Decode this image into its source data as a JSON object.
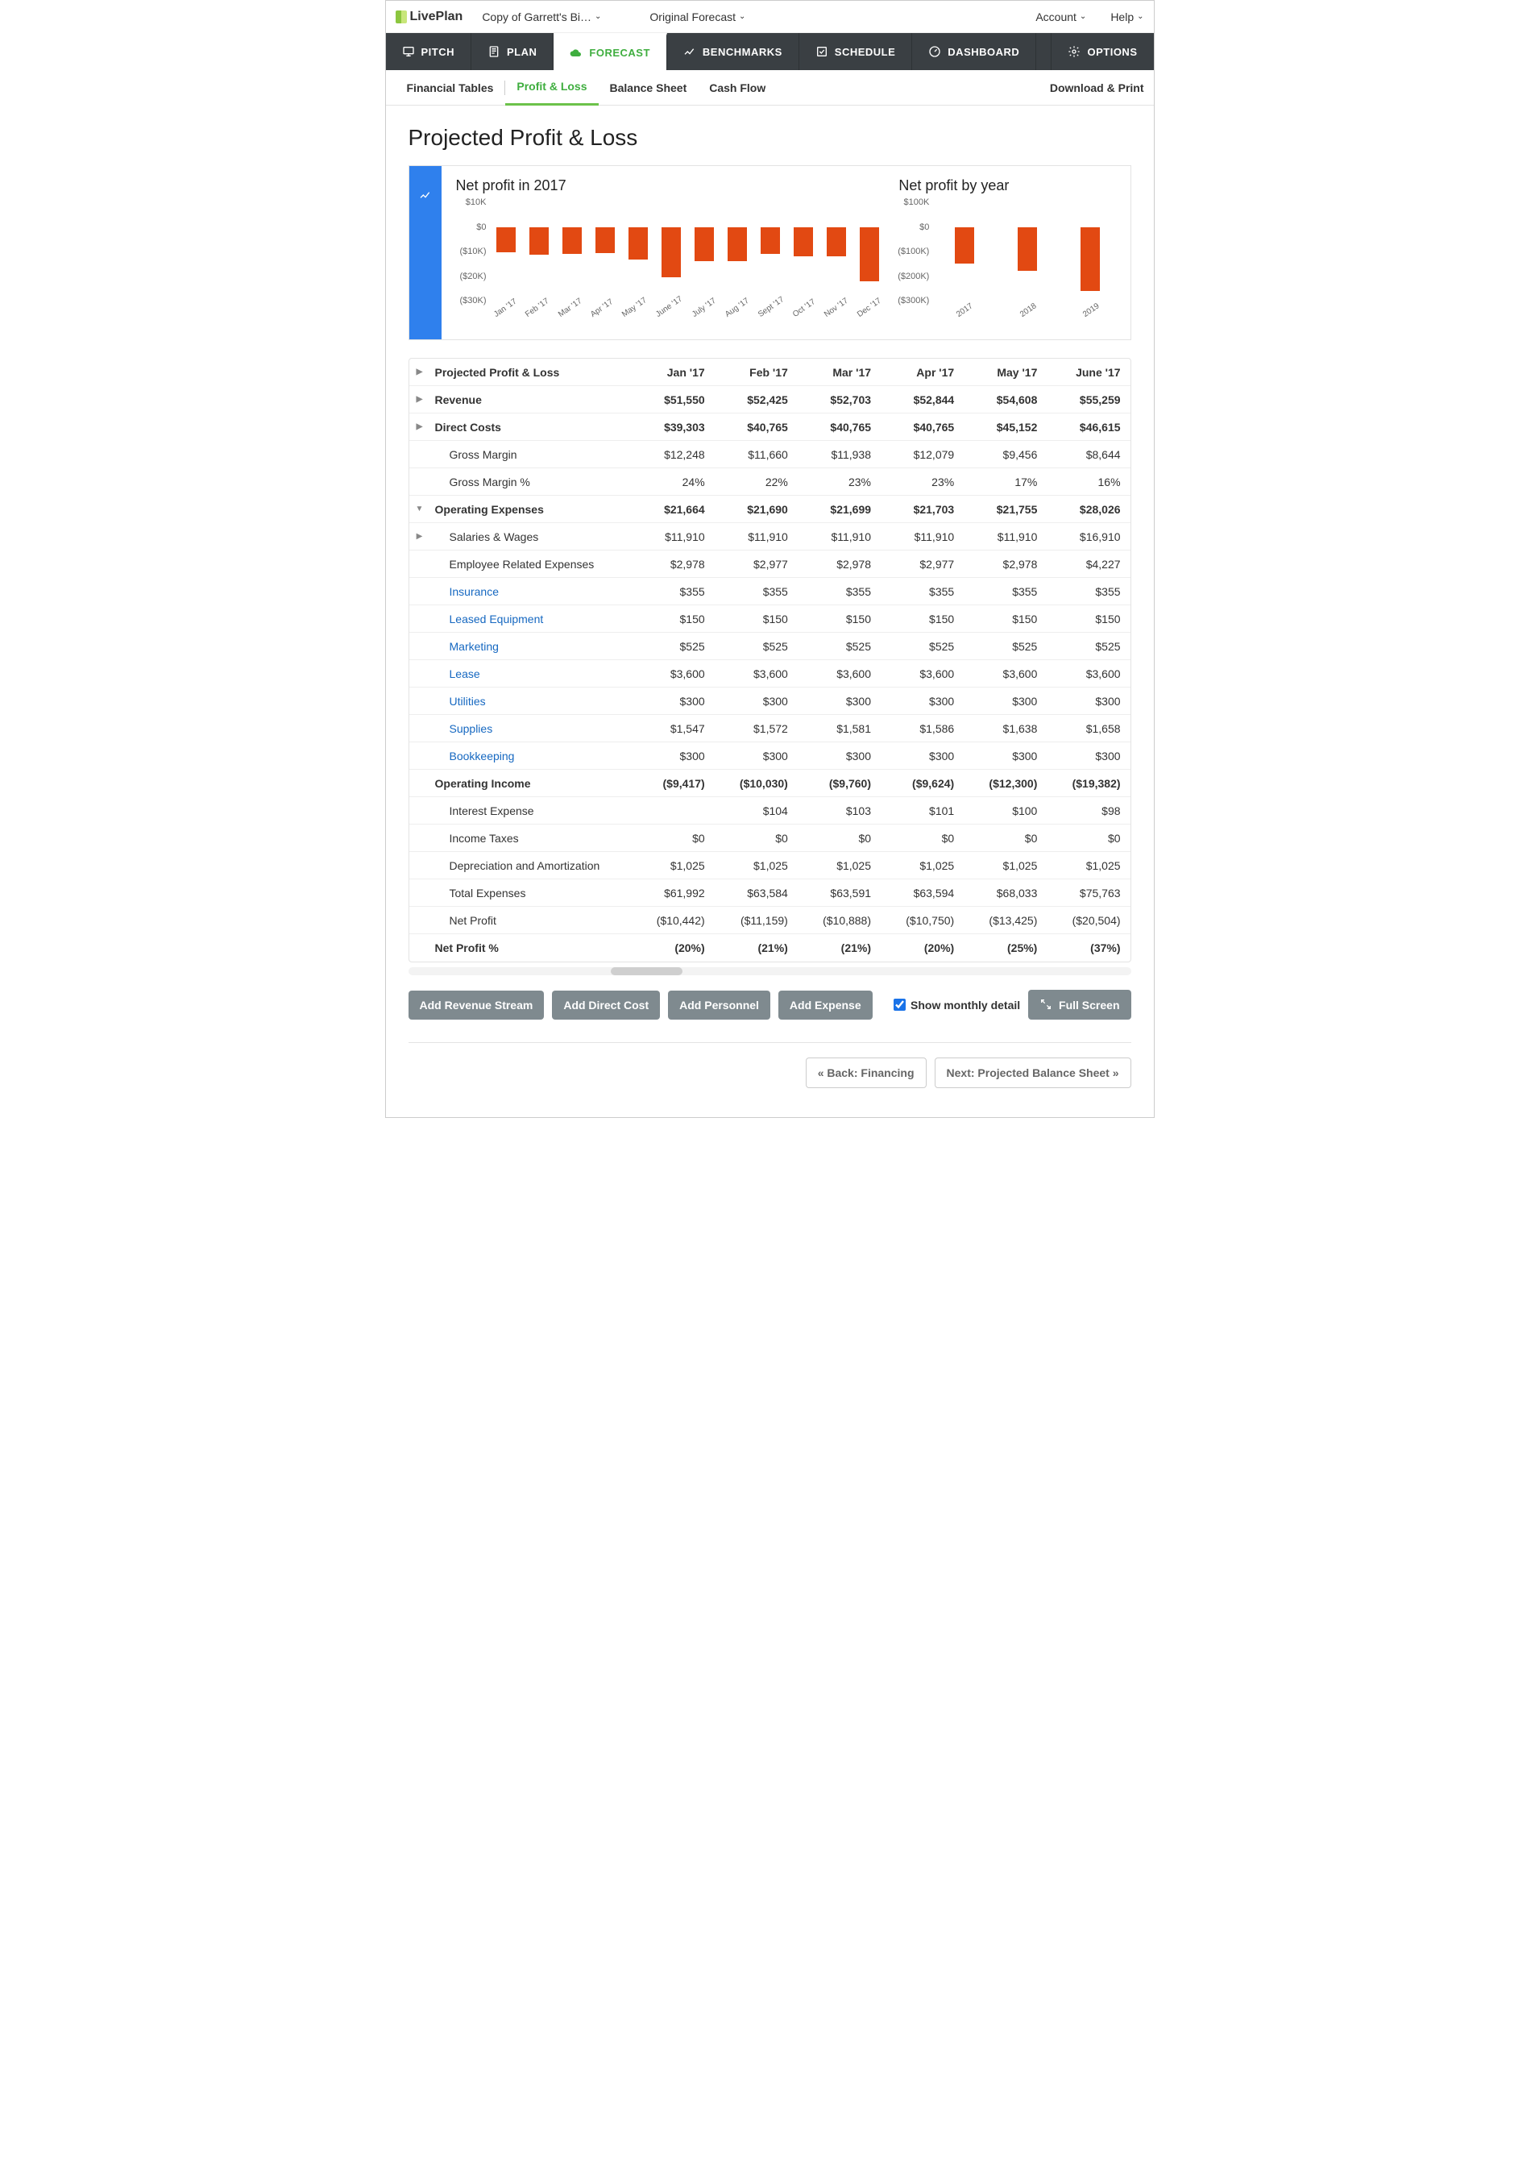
{
  "topbar": {
    "logo_text": "LivePlan",
    "plan_name": "Copy of Garrett's Bi…",
    "forecast_name": "Original Forecast",
    "account_label": "Account",
    "help_label": "Help"
  },
  "mainnav": {
    "items": [
      "PITCH",
      "PLAN",
      "FORECAST",
      "BENCHMARKS",
      "SCHEDULE",
      "DASHBOARD",
      "OPTIONS"
    ],
    "active_index": 2
  },
  "subnav": {
    "items": [
      "Financial Tables",
      "Profit & Loss",
      "Balance Sheet",
      "Cash Flow"
    ],
    "active_index": 1,
    "download_label": "Download & Print"
  },
  "page": {
    "title": "Projected Profit & Loss"
  },
  "charts": {
    "bar_color": "#e24912",
    "tab_color": "#2f80ed",
    "monthly": {
      "title": "Net profit in 2017",
      "ylim": [
        -30000,
        10000
      ],
      "yticks": [
        "$10K",
        "$0",
        "($10K)",
        "($20K)",
        "($30K)"
      ],
      "categories": [
        "Jan '17",
        "Feb '17",
        "Mar '17",
        "Apr '17",
        "May '17",
        "June '17",
        "July '17",
        "Aug '17",
        "Sept '17",
        "Oct '17",
        "Nov '17",
        "Dec '17"
      ],
      "values": [
        -10442,
        -11159,
        -10888,
        -10750,
        -13425,
        -20504,
        -14000,
        -14000,
        -11000,
        -12000,
        -12000,
        -22000
      ]
    },
    "yearly": {
      "title": "Net profit by year",
      "ylim": [
        -300000,
        100000
      ],
      "yticks": [
        "$100K",
        "$0",
        "($100K)",
        "($200K)",
        "($300K)"
      ],
      "categories": [
        "2017",
        "2018",
        "2019"
      ],
      "values": [
        -150000,
        -180000,
        -260000
      ]
    }
  },
  "table": {
    "columns": [
      "Jan '17",
      "Feb '17",
      "Mar '17",
      "Apr '17",
      "May '17",
      "June '17"
    ],
    "rows": [
      {
        "label": "Projected Profit & Loss",
        "bold": true,
        "expand": "right",
        "header": true,
        "cells": [
          "Jan '17",
          "Feb '17",
          "Mar '17",
          "Apr '17",
          "May '17",
          "June '17"
        ]
      },
      {
        "label": "Revenue",
        "bold": true,
        "expand": "right",
        "cells": [
          "$51,550",
          "$52,425",
          "$52,703",
          "$52,844",
          "$54,608",
          "$55,259"
        ]
      },
      {
        "label": "Direct Costs",
        "bold": true,
        "expand": "right",
        "cells": [
          "$39,303",
          "$40,765",
          "$40,765",
          "$40,765",
          "$45,152",
          "$46,615"
        ]
      },
      {
        "label": "Gross Margin",
        "indent": 1,
        "cells": [
          "$12,248",
          "$11,660",
          "$11,938",
          "$12,079",
          "$9,456",
          "$8,644"
        ]
      },
      {
        "label": "Gross Margin %",
        "indent": 1,
        "cells": [
          "24%",
          "22%",
          "23%",
          "23%",
          "17%",
          "16%"
        ]
      },
      {
        "label": "Operating Expenses",
        "bold": true,
        "expand": "down",
        "cells": [
          "$21,664",
          "$21,690",
          "$21,699",
          "$21,703",
          "$21,755",
          "$28,026"
        ]
      },
      {
        "label": "Salaries & Wages",
        "indent": 1,
        "expand": "right",
        "cells": [
          "$11,910",
          "$11,910",
          "$11,910",
          "$11,910",
          "$11,910",
          "$16,910"
        ]
      },
      {
        "label": "Employee Related Expenses",
        "indent": 1,
        "cells": [
          "$2,978",
          "$2,977",
          "$2,978",
          "$2,977",
          "$2,978",
          "$4,227"
        ]
      },
      {
        "label": "Insurance",
        "indent": 1,
        "link": true,
        "cells": [
          "$355",
          "$355",
          "$355",
          "$355",
          "$355",
          "$355"
        ]
      },
      {
        "label": "Leased Equipment",
        "indent": 1,
        "link": true,
        "cells": [
          "$150",
          "$150",
          "$150",
          "$150",
          "$150",
          "$150"
        ]
      },
      {
        "label": "Marketing",
        "indent": 1,
        "link": true,
        "cells": [
          "$525",
          "$525",
          "$525",
          "$525",
          "$525",
          "$525"
        ]
      },
      {
        "label": "Lease",
        "indent": 1,
        "link": true,
        "cells": [
          "$3,600",
          "$3,600",
          "$3,600",
          "$3,600",
          "$3,600",
          "$3,600"
        ]
      },
      {
        "label": "Utilities",
        "indent": 1,
        "link": true,
        "cells": [
          "$300",
          "$300",
          "$300",
          "$300",
          "$300",
          "$300"
        ]
      },
      {
        "label": "Supplies",
        "indent": 1,
        "link": true,
        "cells": [
          "$1,547",
          "$1,572",
          "$1,581",
          "$1,586",
          "$1,638",
          "$1,658"
        ]
      },
      {
        "label": "Bookkeeping",
        "indent": 1,
        "link": true,
        "cells": [
          "$300",
          "$300",
          "$300",
          "$300",
          "$300",
          "$300"
        ]
      },
      {
        "label": "Operating Income",
        "bold": true,
        "cells": [
          "($9,417)",
          "($10,030)",
          "($9,760)",
          "($9,624)",
          "($12,300)",
          "($19,382)"
        ]
      },
      {
        "label": "Interest Expense",
        "indent": 1,
        "cells": [
          "",
          "$104",
          "$103",
          "$101",
          "$100",
          "$98"
        ]
      },
      {
        "label": "Income Taxes",
        "indent": 1,
        "cells": [
          "$0",
          "$0",
          "$0",
          "$0",
          "$0",
          "$0"
        ]
      },
      {
        "label": "Depreciation and Amortization",
        "indent": 1,
        "cells": [
          "$1,025",
          "$1,025",
          "$1,025",
          "$1,025",
          "$1,025",
          "$1,025"
        ]
      },
      {
        "label": "Total Expenses",
        "indent": 1,
        "cells": [
          "$61,992",
          "$63,584",
          "$63,591",
          "$63,594",
          "$68,033",
          "$75,763"
        ]
      },
      {
        "label": "Net Profit",
        "indent": 1,
        "cells": [
          "($10,442)",
          "($11,159)",
          "($10,888)",
          "($10,750)",
          "($13,425)",
          "($20,504)"
        ]
      },
      {
        "label": "Net Profit %",
        "bold": true,
        "cells": [
          "(20%)",
          "(21%)",
          "(21%)",
          "(20%)",
          "(25%)",
          "(37%)"
        ]
      }
    ]
  },
  "buttons": {
    "add_revenue": "Add Revenue Stream",
    "add_direct": "Add Direct Cost",
    "add_personnel": "Add Personnel",
    "add_expense": "Add Expense",
    "show_monthly": "Show monthly detail",
    "full_screen": "Full Screen",
    "back": "« Back: Financing",
    "next": "Next: Projected Balance Sheet »"
  }
}
